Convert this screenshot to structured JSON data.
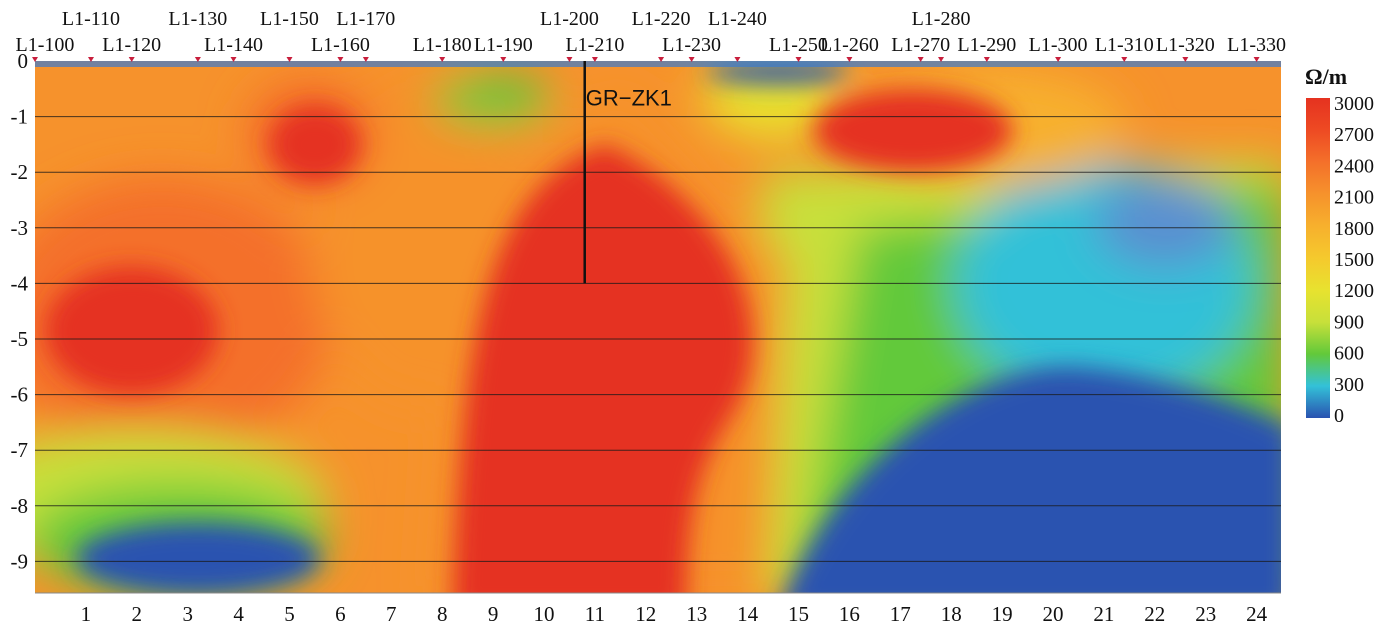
{
  "chart_data": {
    "type": "heatmap",
    "title": "",
    "unit": "Ω/m",
    "x_ticks": [
      "1",
      "2",
      "3",
      "4",
      "5",
      "6",
      "7",
      "8",
      "9",
      "10",
      "11",
      "12",
      "13",
      "14",
      "15",
      "16",
      "17",
      "18",
      "19",
      "20",
      "21",
      "22",
      "23",
      "24"
    ],
    "y_ticks": [
      "0",
      "-1",
      "-2",
      "-3",
      "-4",
      "-5",
      "-6",
      "-7",
      "-8",
      "-9"
    ],
    "xlim": [
      0,
      24.5
    ],
    "ylim": [
      -9.6,
      0
    ],
    "grid": "horizontal",
    "colorbar": {
      "ticks": [
        "3000",
        "2700",
        "2400",
        "2100",
        "1800",
        "1500",
        "1200",
        "900",
        "600",
        "300",
        "0"
      ],
      "range": [
        0,
        3000
      ],
      "colors": [
        "#e53220",
        "#ee4a23",
        "#f4702a",
        "#f6922c",
        "#f7b02d",
        "#f5c92d",
        "#e8e22f",
        "#c8e03a",
        "#62c93a",
        "#33c1d8",
        "#2a52b0"
      ]
    },
    "stations": [
      {
        "label": "L1-100",
        "x": 0.0
      },
      {
        "label": "L1-110",
        "x": 1.1
      },
      {
        "label": "L1-120",
        "x": 1.9
      },
      {
        "label": "L1-130",
        "x": 3.2
      },
      {
        "label": "L1-140",
        "x": 3.9
      },
      {
        "label": "L1-150",
        "x": 5.0
      },
      {
        "label": "L1-160",
        "x": 6.0
      },
      {
        "label": "L1-170",
        "x": 6.5
      },
      {
        "label": "L1-180",
        "x": 8.0
      },
      {
        "label": "L1-190",
        "x": 9.2
      },
      {
        "label": "L1-200",
        "x": 10.5
      },
      {
        "label": "L1-210",
        "x": 11.0
      },
      {
        "label": "L1-220",
        "x": 12.3
      },
      {
        "label": "L1-230",
        "x": 12.9
      },
      {
        "label": "L1-240",
        "x": 13.8
      },
      {
        "label": "L1-250",
        "x": 15.0
      },
      {
        "label": "L1-260",
        "x": 16.0
      },
      {
        "label": "L1-270",
        "x": 17.4
      },
      {
        "label": "L1-280",
        "x": 17.8
      },
      {
        "label": "L1-290",
        "x": 18.7
      },
      {
        "label": "L1-300",
        "x": 20.1
      },
      {
        "label": "L1-310",
        "x": 21.4
      },
      {
        "label": "L1-320",
        "x": 22.6
      },
      {
        "label": "L1-330",
        "x": 24.0
      }
    ],
    "borehole": {
      "label": "GR−ZK1",
      "x": 10.8,
      "top": 0,
      "bottom": -4.0
    },
    "anomalies": [
      {
        "name": "high-central",
        "x": [
          8.2,
          12.8
        ],
        "y": [
          -1.5,
          -9.6
        ],
        "resistivity": 3000
      },
      {
        "name": "high-west",
        "x": [
          0.2,
          3.6
        ],
        "y": [
          -3.7,
          -6.0
        ],
        "resistivity": 3000
      },
      {
        "name": "high-L1-150",
        "x": [
          4.6,
          6.4
        ],
        "y": [
          -0.8,
          -2.2
        ],
        "resistivity": 3000
      },
      {
        "name": "high-L1-270",
        "x": [
          15.3,
          19.2
        ],
        "y": [
          -0.5,
          -2.0
        ],
        "resistivity": 3000
      },
      {
        "name": "low-east",
        "x": [
          14.5,
          24.5
        ],
        "y": [
          -5.5,
          -9.6
        ],
        "resistivity": 0
      },
      {
        "name": "low-southwest",
        "x": [
          0.8,
          5.6
        ],
        "y": [
          -8.3,
          -9.6
        ],
        "resistivity": 0
      },
      {
        "name": "low-shallow-L1-240",
        "x": [
          13.2,
          16.0
        ],
        "y": [
          0.0,
          -0.4
        ],
        "resistivity": 0
      }
    ]
  }
}
